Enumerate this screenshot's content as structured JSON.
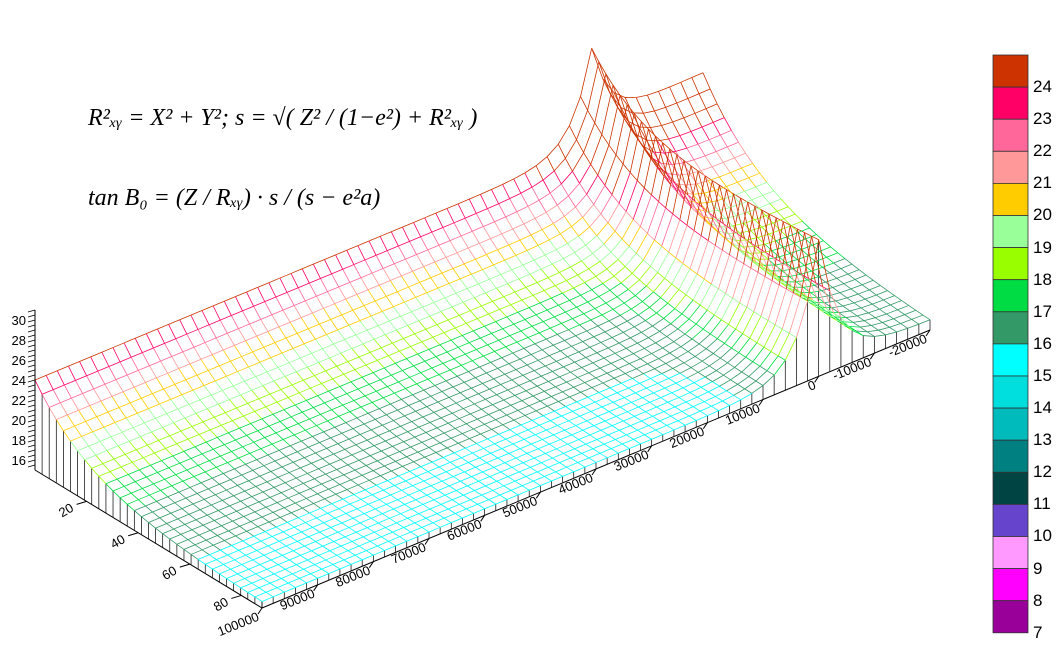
{
  "chart_data": {
    "type": "surface3d",
    "x_axis": {
      "range": [
        100000,
        -20000
      ],
      "ticks": [
        "100000",
        "90000",
        "80000",
        "70000",
        "60000",
        "50000",
        "40000",
        "30000",
        "20000",
        "10000",
        "0",
        "-10000",
        "-20000"
      ]
    },
    "y_axis": {
      "range": [
        0,
        88
      ],
      "ticks": [
        "20",
        "40",
        "60",
        "80"
      ]
    },
    "z_axis": {
      "range": [
        15,
        31
      ],
      "ticks": [
        "16",
        "18",
        "20",
        "22",
        "24",
        "26",
        "28",
        "30"
      ]
    },
    "surface_description_values": {
      "z_at_y0_x100000": 24,
      "z_at_y88_x100000": 15.7,
      "spike_x": 0,
      "spike_peak_z_back": 34,
      "spike_peak_z_front": 28.6
    },
    "colorbar": {
      "labels": [
        "24",
        "23",
        "22",
        "21",
        "20",
        "19",
        "18",
        "17",
        "16",
        "15",
        "14",
        "13",
        "12",
        "11",
        "10",
        "9",
        "8",
        "7"
      ],
      "colors": [
        "#CC3300",
        "#FF0066",
        "#FF6699",
        "#FF9999",
        "#FFCC00",
        "#99FF99",
        "#99FF00",
        "#00DD44",
        "#339966",
        "#00FFFF",
        "#00DDDD",
        "#00BBBB",
        "#008080",
        "#004444",
        "#6644CC",
        "#FF99FF",
        "#FF00FF",
        "#990099"
      ]
    },
    "annotations": [
      "R²ₓᵧ = X² + Y²; s = √( Z² / (1−e²) + R²ₓᵧ )",
      "tan B₀ = (Z / Rₓᵧ) · s / (s − e²a)"
    ]
  }
}
